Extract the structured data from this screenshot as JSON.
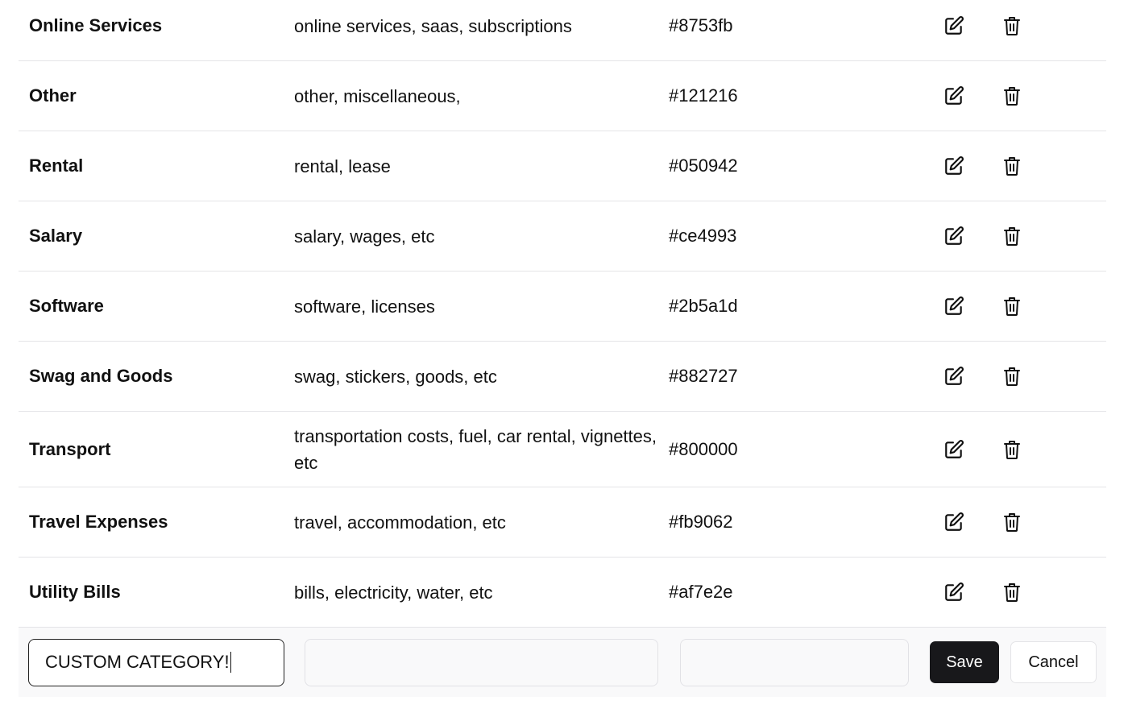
{
  "categories": [
    {
      "name": "Online Services",
      "keywords": "online services, saas, subscriptions",
      "color": "#8753fb"
    },
    {
      "name": "Other",
      "keywords": "other, miscellaneous,",
      "color": "#121216"
    },
    {
      "name": "Rental",
      "keywords": "rental, lease",
      "color": "#050942"
    },
    {
      "name": "Salary",
      "keywords": "salary, wages, etc",
      "color": "#ce4993"
    },
    {
      "name": "Software",
      "keywords": "software, licenses",
      "color": "#2b5a1d"
    },
    {
      "name": "Swag and Goods",
      "keywords": "swag, stickers, goods, etc",
      "color": "#882727"
    },
    {
      "name": "Transport",
      "keywords": "transportation costs, fuel, car rental, vignettes, etc",
      "color": "#800000"
    },
    {
      "name": "Travel Expenses",
      "keywords": "travel, accommodation, etc",
      "color": "#fb9062"
    },
    {
      "name": "Utility Bills",
      "keywords": "bills, electricity, water, etc",
      "color": "#af7e2e"
    }
  ],
  "edit_form": {
    "name_value": "CUSTOM CATEGORY!",
    "keywords_value": "",
    "color_value": "",
    "save_label": "Save",
    "cancel_label": "Cancel"
  },
  "icons": {
    "edit": "edit-pencil-square-icon",
    "delete": "trash-icon"
  }
}
